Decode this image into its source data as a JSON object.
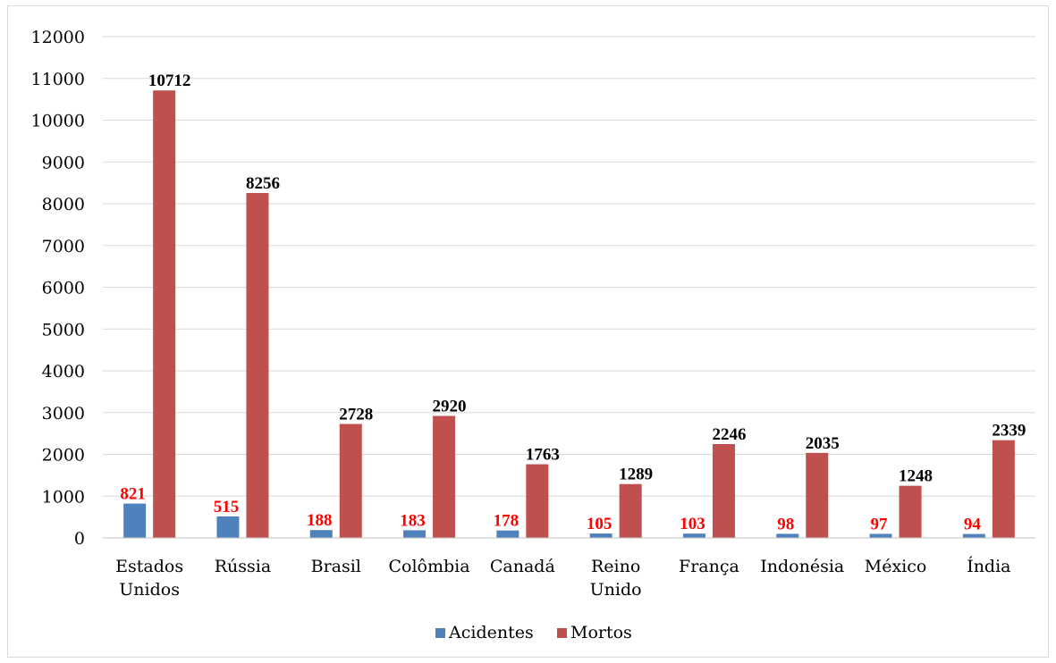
{
  "chart_data": {
    "type": "bar",
    "title": "",
    "xlabel": "",
    "ylabel": "",
    "ylim": [
      0,
      12000
    ],
    "yticks": [
      0,
      1000,
      2000,
      3000,
      4000,
      5000,
      6000,
      7000,
      8000,
      9000,
      10000,
      11000,
      12000
    ],
    "grid": true,
    "legend_position": "bottom",
    "categories": [
      [
        "Estados",
        "Unidos"
      ],
      [
        "Rússia"
      ],
      [
        "Brasil"
      ],
      [
        "Colômbia"
      ],
      [
        "Canadá"
      ],
      [
        "Reino",
        "Unido"
      ],
      [
        "França"
      ],
      [
        "Indonésia"
      ],
      [
        "México"
      ],
      [
        "Índia"
      ]
    ],
    "series": [
      {
        "name": "Acidentes",
        "color": "#4F81BD",
        "label_color": "#FF0000",
        "values": [
          821,
          515,
          188,
          183,
          178,
          105,
          103,
          98,
          97,
          94
        ]
      },
      {
        "name": "Mortos",
        "color": "#C0504D",
        "label_color": "#000000",
        "values": [
          10712,
          8256,
          2728,
          2920,
          1763,
          1289,
          2246,
          2035,
          1248,
          2339
        ]
      }
    ],
    "gridline_color": "#d9d9d9",
    "axis_color": "#bfbfbf"
  }
}
